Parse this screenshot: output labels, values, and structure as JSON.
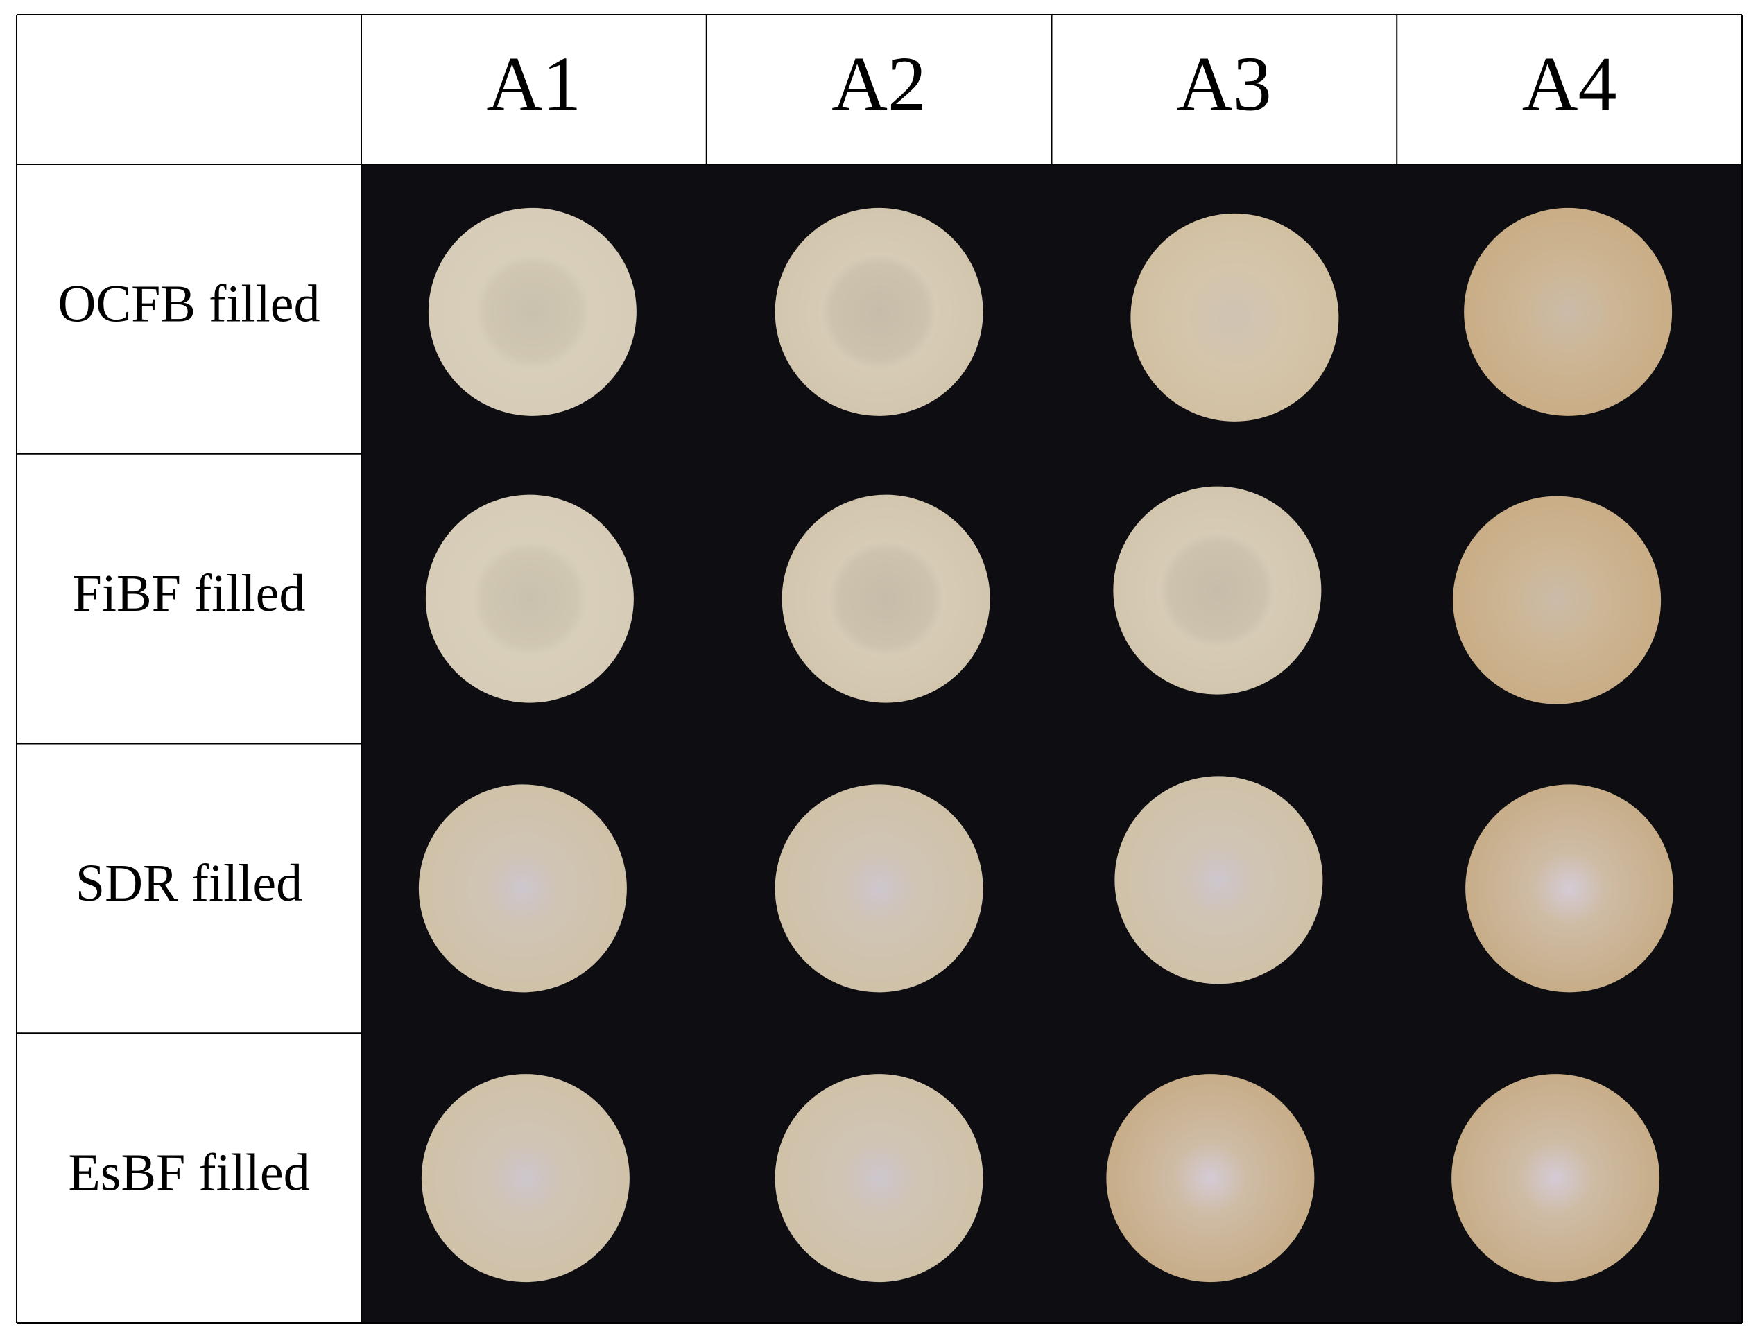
{
  "table": {
    "columns": [
      "A1",
      "A2",
      "A3",
      "A4"
    ],
    "rows": [
      "OCFB filled",
      "FiBF filled",
      "SDR filled",
      "EsBF filled"
    ]
  }
}
